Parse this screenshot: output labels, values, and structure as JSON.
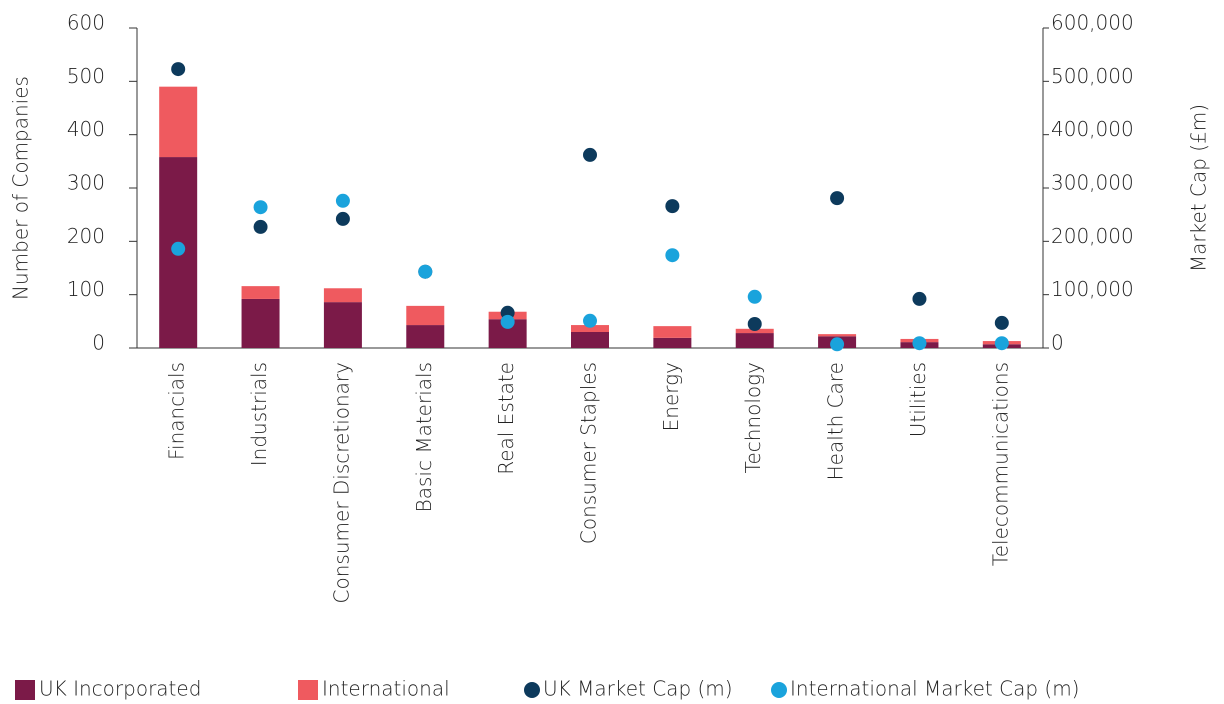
{
  "chart_data": {
    "type": "bar",
    "stacked": true,
    "categories": [
      "Financials",
      "Industrials",
      "Consumer Discretionary",
      "Basic Materials",
      "Real Estate",
      "Consumer Staples",
      "Energy",
      "Technology",
      "Health Care",
      "Utilities",
      "Telecommunications"
    ],
    "y_label": "Number of Companies",
    "y2_label": "Market Cap (£m)",
    "ylim": [
      0,
      600
    ],
    "yticks": [
      0,
      100,
      200,
      300,
      400,
      500,
      600
    ],
    "y2lim": [
      0,
      600000
    ],
    "y2ticks": [
      {
        "value": 0,
        "label": "0"
      },
      {
        "value": 100000,
        "label": "100,000"
      },
      {
        "value": 200000,
        "label": "200,000"
      },
      {
        "value": 300000,
        "label": "300,000"
      },
      {
        "value": 400000,
        "label": "400,000"
      },
      {
        "value": 500000,
        "label": "500,000"
      },
      {
        "value": 600000,
        "label": "600,000"
      }
    ],
    "series": [
      {
        "name": "UK Incorporated",
        "type": "bar",
        "color": "#7b1a48",
        "values": [
          358,
          92,
          86,
          43,
          54,
          30,
          19,
          28,
          22,
          11,
          7
        ]
      },
      {
        "name": "International",
        "type": "bar",
        "color": "#ef5a5f",
        "values": [
          132,
          24,
          26,
          36,
          14,
          13,
          22,
          8,
          4,
          6,
          6
        ]
      },
      {
        "name": "UK Market Cap (m)",
        "type": "scatter",
        "axis": "y2",
        "color": "#0d3a5c",
        "values": [
          523000,
          227000,
          242000,
          143000,
          66000,
          362000,
          266000,
          45000,
          281000,
          92000,
          47000
        ]
      },
      {
        "name": "International Market Cap (m)",
        "type": "scatter",
        "axis": "y2",
        "color": "#1aa3dc",
        "values": [
          186000,
          264000,
          276000,
          143000,
          49000,
          51000,
          174000,
          96000,
          7000,
          9000,
          9000
        ]
      }
    ]
  }
}
